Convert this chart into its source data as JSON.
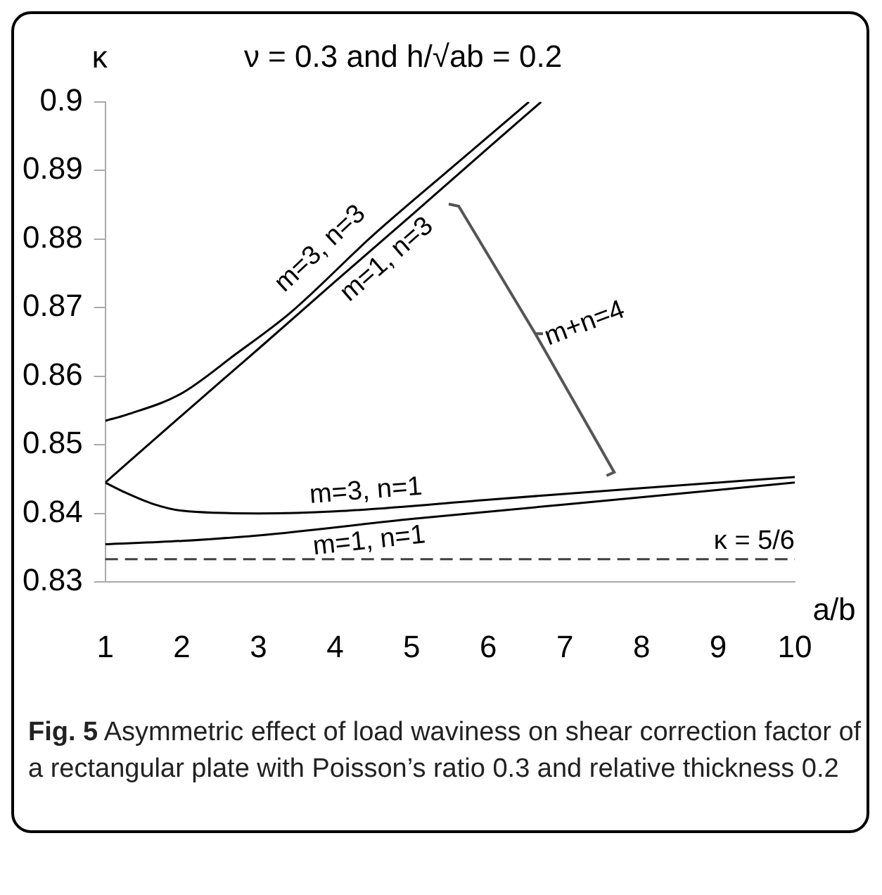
{
  "chart_data": {
    "type": "line",
    "title": "ν = 0.3 and h/√ab = 0.2",
    "xlabel": "a/b",
    "ylabel": "κ",
    "xlim": [
      1,
      10
    ],
    "xticks": [
      1,
      2,
      3,
      4,
      5,
      6,
      7,
      8,
      9,
      10
    ],
    "ylim": [
      0.83,
      0.9
    ],
    "yticks": [
      0.83,
      0.84,
      0.85,
      0.86,
      0.87,
      0.88,
      0.89,
      0.9
    ],
    "grid": false,
    "legend": false,
    "marker": "none",
    "line_style": "solid",
    "series": [
      {
        "name": "m=3, n=3",
        "color": "#000000",
        "x": [
          1,
          1.28,
          1.98,
          2.7,
          3.42,
          4.49,
          5.5,
          6.53
        ],
        "values": [
          0.8535,
          0.8544,
          0.8574,
          0.8632,
          0.8693,
          0.8805,
          0.8902,
          0.9
        ]
      },
      {
        "name": "m=1, n=3",
        "color": "#000000",
        "x": [
          1,
          2,
          3,
          4,
          5,
          6,
          6.69
        ],
        "values": [
          0.8445,
          0.8543,
          0.864,
          0.8738,
          0.8835,
          0.8933,
          0.9
        ]
      },
      {
        "name": "m=3, n=1",
        "color": "#000000",
        "x": [
          1,
          1.27,
          1.62,
          2,
          3,
          4,
          6,
          8,
          10
        ],
        "values": [
          0.8445,
          0.843,
          0.8414,
          0.8404,
          0.84,
          0.8403,
          0.842,
          0.8437,
          0.8453
        ]
      },
      {
        "name": "m=1, n=1",
        "color": "#000000",
        "x": [
          1,
          2,
          3,
          5,
          7,
          10
        ],
        "values": [
          0.8355,
          0.836,
          0.8368,
          0.8392,
          0.8413,
          0.8445
        ]
      }
    ],
    "ref_lines": [
      {
        "axis": "y",
        "value": 0.833333,
        "color": "#404040",
        "line_style": "dashed"
      }
    ],
    "annotations": [
      {
        "text": "κ = 5/6",
        "x": 10,
        "y": 0.833333
      },
      "m+n=4",
      "Fig. 5 Asymmetric effect of load waviness on shear correction factor of a rectangular plate with Poisson’s ratio 0.3 and relative thickness 0.2"
    ]
  }
}
